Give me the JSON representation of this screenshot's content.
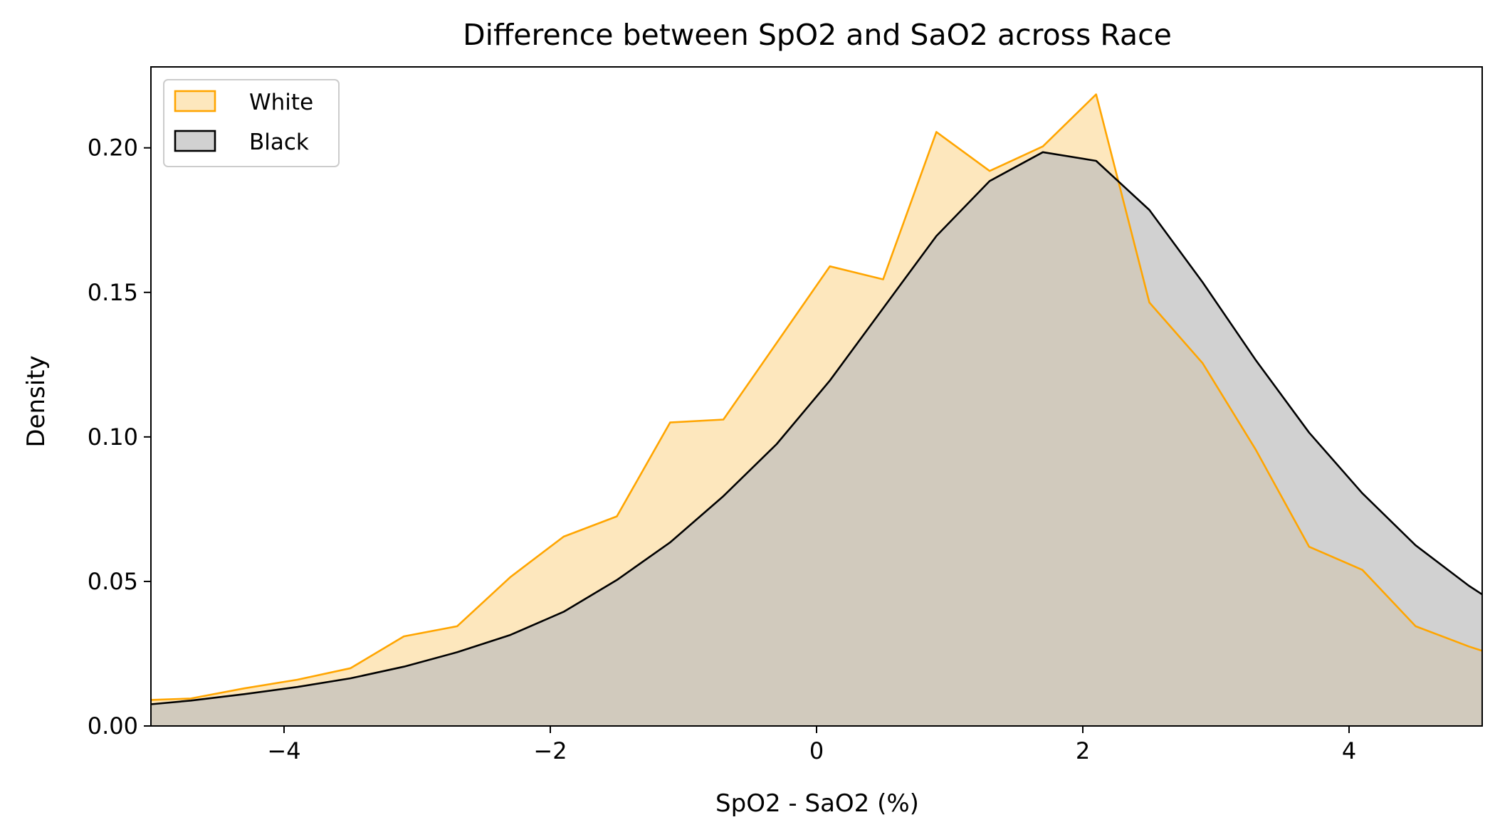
{
  "chart_data": {
    "type": "area",
    "title": "Difference between SpO2 and SaO2 across Race",
    "xlabel": "SpO2 - SaO2 (%)",
    "ylabel": "Density",
    "xlim": [
      -5,
      5
    ],
    "ylim": [
      0,
      0.228
    ],
    "xticks": [
      -4,
      -2,
      0,
      2,
      4
    ],
    "xtick_labels": [
      "−4",
      "−2",
      "0",
      "2",
      "4"
    ],
    "yticks": [
      0.0,
      0.05,
      0.1,
      0.15,
      0.2
    ],
    "ytick_labels": [
      "0.00",
      "0.05",
      "0.10",
      "0.15",
      "0.20"
    ],
    "grid": false,
    "legend": {
      "position": "top-left"
    },
    "series": [
      {
        "name": "White",
        "line_color": "#FFA500",
        "fill_color": "#FDE7BD",
        "x": [
          -5.0,
          -4.7,
          -4.3,
          -3.9,
          -3.5,
          -3.1,
          -2.7,
          -2.3,
          -1.9,
          -1.5,
          -1.1,
          -0.7,
          -0.3,
          0.1,
          0.5,
          0.9,
          1.3,
          1.7,
          2.1,
          2.5,
          2.9,
          3.3,
          3.7,
          4.1,
          4.5,
          4.9,
          5.0
        ],
        "y": [
          0.009,
          0.0095,
          0.013,
          0.016,
          0.02,
          0.031,
          0.0345,
          0.0515,
          0.0655,
          0.0725,
          0.105,
          0.106,
          0.1325,
          0.159,
          0.1545,
          0.2055,
          0.192,
          0.2005,
          0.2185,
          0.1465,
          0.1255,
          0.0955,
          0.062,
          0.054,
          0.0345,
          0.0275,
          0.026
        ]
      },
      {
        "name": "Black",
        "line_color": "#000000",
        "fill_color": "#BEBEBE",
        "x": [
          -5.0,
          -4.7,
          -4.3,
          -3.9,
          -3.5,
          -3.1,
          -2.7,
          -2.3,
          -1.9,
          -1.5,
          -1.1,
          -0.7,
          -0.3,
          0.1,
          0.5,
          0.9,
          1.3,
          1.7,
          2.1,
          2.5,
          2.9,
          3.3,
          3.7,
          4.1,
          4.5,
          4.9,
          5.0
        ],
        "y": [
          0.0075,
          0.0088,
          0.011,
          0.0135,
          0.0165,
          0.0205,
          0.0255,
          0.0315,
          0.0395,
          0.0505,
          0.0635,
          0.0795,
          0.0975,
          0.1195,
          0.1445,
          0.1695,
          0.1885,
          0.1985,
          0.1955,
          0.1785,
          0.1535,
          0.1265,
          0.1015,
          0.0805,
          0.0625,
          0.0485,
          0.0455
        ]
      }
    ]
  }
}
